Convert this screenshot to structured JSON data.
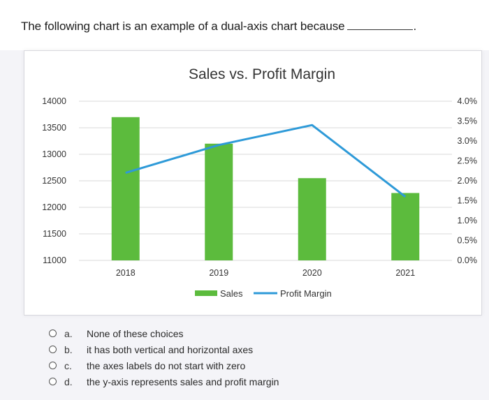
{
  "question": {
    "text": "The following chart is an example of a dual-axis chart because",
    "blank_suffix": "."
  },
  "colors": {
    "bar": "#5cbb3d",
    "line": "#2e9ad8",
    "grid": "#d9d9d9",
    "axis_text": "#333333"
  },
  "chart_data": {
    "type": "bar",
    "title": "Sales vs. Profit Margin",
    "categories": [
      "2018",
      "2019",
      "2020",
      "2021"
    ],
    "series": [
      {
        "name": "Sales",
        "type": "bar",
        "axis": "left",
        "values": [
          13700,
          13200,
          12550,
          12270
        ]
      },
      {
        "name": "Profit Margin",
        "type": "line",
        "axis": "right",
        "values": [
          0.022,
          0.029,
          0.034,
          0.016
        ]
      }
    ],
    "y_left": {
      "ylim": [
        11000,
        14000
      ],
      "ticks": [
        "11000",
        "11500",
        "12000",
        "12500",
        "13000",
        "13500",
        "14000"
      ]
    },
    "y_right": {
      "ylim": [
        0,
        0.04
      ],
      "ticks": [
        "0.0%",
        "0.5%",
        "1.0%",
        "1.5%",
        "2.0%",
        "2.5%",
        "3.0%",
        "3.5%",
        "4.0%"
      ]
    },
    "legend_position": "bottom",
    "grid": true
  },
  "options": [
    {
      "letter": "a.",
      "text": "None of these choices"
    },
    {
      "letter": "b.",
      "text": "it has both vertical and horizontal axes"
    },
    {
      "letter": "c.",
      "text": "the axes labels do not start with zero"
    },
    {
      "letter": "d.",
      "text": "the y-axis represents sales and profit margin"
    }
  ]
}
